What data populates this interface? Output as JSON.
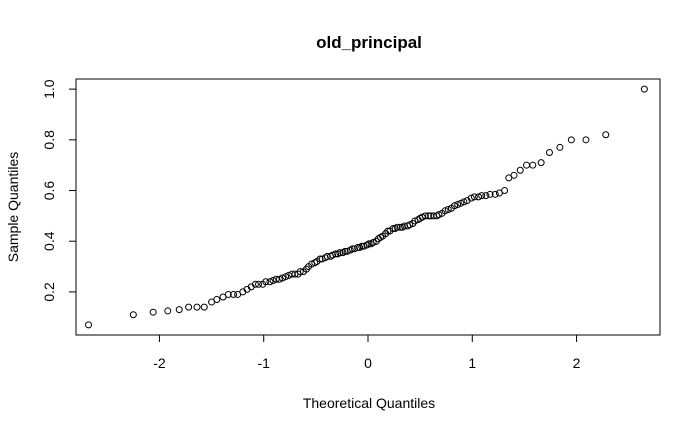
{
  "chart_data": {
    "type": "scatter",
    "title": "old_principal",
    "xlabel": "Theoretical Quantiles",
    "ylabel": "Sample Quantiles",
    "xlim": [
      -2.8,
      2.8
    ],
    "ylim": [
      0.03,
      1.04
    ],
    "xticks": [
      -2,
      -1,
      0,
      1,
      2
    ],
    "xtick_labels": [
      "-2",
      "-1",
      "0",
      "1",
      "2"
    ],
    "yticks": [
      0.2,
      0.4,
      0.6,
      0.8,
      1.0
    ],
    "ytick_labels": [
      "0.2",
      "0.4",
      "0.6",
      "0.8",
      "1.0"
    ],
    "grid": false,
    "points": [
      [
        -2.68,
        0.07
      ],
      [
        -2.25,
        0.11
      ],
      [
        -2.06,
        0.12
      ],
      [
        -1.92,
        0.125
      ],
      [
        -1.81,
        0.13
      ],
      [
        -1.72,
        0.14
      ],
      [
        -1.64,
        0.14
      ],
      [
        -1.57,
        0.14
      ],
      [
        -1.5,
        0.16
      ],
      [
        -1.45,
        0.17
      ],
      [
        -1.39,
        0.18
      ],
      [
        -1.34,
        0.19
      ],
      [
        -1.29,
        0.19
      ],
      [
        -1.25,
        0.19
      ],
      [
        -1.2,
        0.2
      ],
      [
        -1.16,
        0.21
      ],
      [
        -1.12,
        0.22
      ],
      [
        -1.08,
        0.23
      ],
      [
        -1.05,
        0.23
      ],
      [
        -1.01,
        0.23
      ],
      [
        -0.98,
        0.24
      ],
      [
        -0.94,
        0.24
      ],
      [
        -0.91,
        0.245
      ],
      [
        -0.88,
        0.25
      ],
      [
        -0.85,
        0.25
      ],
      [
        -0.82,
        0.255
      ],
      [
        -0.79,
        0.26
      ],
      [
        -0.76,
        0.265
      ],
      [
        -0.73,
        0.27
      ],
      [
        -0.7,
        0.27
      ],
      [
        -0.67,
        0.27
      ],
      [
        -0.65,
        0.28
      ],
      [
        -0.62,
        0.28
      ],
      [
        -0.59,
        0.29
      ],
      [
        -0.57,
        0.3
      ],
      [
        -0.54,
        0.31
      ],
      [
        -0.51,
        0.315
      ],
      [
        -0.49,
        0.32
      ],
      [
        -0.46,
        0.33
      ],
      [
        -0.44,
        0.33
      ],
      [
        -0.41,
        0.335
      ],
      [
        -0.39,
        0.34
      ],
      [
        -0.36,
        0.34
      ],
      [
        -0.34,
        0.345
      ],
      [
        -0.31,
        0.35
      ],
      [
        -0.29,
        0.35
      ],
      [
        -0.27,
        0.355
      ],
      [
        -0.24,
        0.355
      ],
      [
        -0.22,
        0.36
      ],
      [
        -0.2,
        0.36
      ],
      [
        -0.17,
        0.365
      ],
      [
        -0.15,
        0.37
      ],
      [
        -0.13,
        0.37
      ],
      [
        -0.1,
        0.375
      ],
      [
        -0.08,
        0.375
      ],
      [
        -0.06,
        0.38
      ],
      [
        -0.04,
        0.38
      ],
      [
        -0.01,
        0.385
      ],
      [
        0.01,
        0.39
      ],
      [
        0.03,
        0.39
      ],
      [
        0.05,
        0.395
      ],
      [
        0.08,
        0.4
      ],
      [
        0.1,
        0.41
      ],
      [
        0.12,
        0.415
      ],
      [
        0.14,
        0.42
      ],
      [
        0.17,
        0.43
      ],
      [
        0.19,
        0.44
      ],
      [
        0.21,
        0.44
      ],
      [
        0.24,
        0.45
      ],
      [
        0.26,
        0.45
      ],
      [
        0.28,
        0.455
      ],
      [
        0.31,
        0.455
      ],
      [
        0.33,
        0.455
      ],
      [
        0.35,
        0.46
      ],
      [
        0.38,
        0.46
      ],
      [
        0.4,
        0.465
      ],
      [
        0.43,
        0.47
      ],
      [
        0.45,
        0.48
      ],
      [
        0.48,
        0.485
      ],
      [
        0.5,
        0.49
      ],
      [
        0.52,
        0.495
      ],
      [
        0.55,
        0.5
      ],
      [
        0.58,
        0.5
      ],
      [
        0.6,
        0.5
      ],
      [
        0.63,
        0.5
      ],
      [
        0.66,
        0.5
      ],
      [
        0.68,
        0.505
      ],
      [
        0.71,
        0.51
      ],
      [
        0.74,
        0.52
      ],
      [
        0.77,
        0.525
      ],
      [
        0.8,
        0.53
      ],
      [
        0.83,
        0.54
      ],
      [
        0.86,
        0.545
      ],
      [
        0.89,
        0.55
      ],
      [
        0.92,
        0.555
      ],
      [
        0.95,
        0.56
      ],
      [
        0.99,
        0.57
      ],
      [
        1.02,
        0.575
      ],
      [
        1.06,
        0.575
      ],
      [
        1.09,
        0.58
      ],
      [
        1.13,
        0.58
      ],
      [
        1.17,
        0.585
      ],
      [
        1.22,
        0.585
      ],
      [
        1.26,
        0.59
      ],
      [
        1.31,
        0.6
      ],
      [
        1.35,
        0.65
      ],
      [
        1.4,
        0.66
      ],
      [
        1.46,
        0.68
      ],
      [
        1.52,
        0.7
      ],
      [
        1.58,
        0.7
      ],
      [
        1.66,
        0.71
      ],
      [
        1.74,
        0.75
      ],
      [
        1.84,
        0.77
      ],
      [
        1.95,
        0.8
      ],
      [
        2.09,
        0.8
      ],
      [
        2.28,
        0.82
      ],
      [
        2.65,
        1.0
      ]
    ]
  }
}
